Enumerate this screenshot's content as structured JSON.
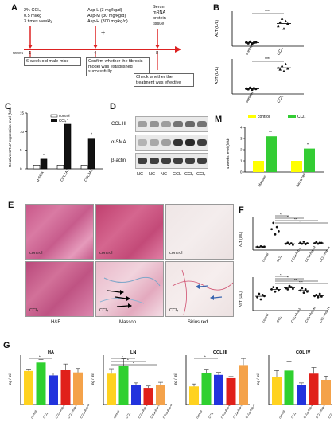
{
  "panelA": {
    "letter": "A",
    "treat": [
      "2% CCl₄",
      "0.5 ml/kg",
      "3 times weekly"
    ],
    "doses": [
      "Asp-L (3 mg/kg/d)",
      "Asp-M (30 mg/kg/d)",
      "Asp-H (300 mg/kg/d)"
    ],
    "plus": "+",
    "samples": [
      "Serum",
      "mRNA",
      "protein",
      "tissue"
    ],
    "week_label": "week",
    "weeks": [
      "1",
      "4",
      "8"
    ],
    "box1": "6-week-old male mice",
    "box2": "Confirm whether the fibrosis model was established successfully",
    "box3": "Check whether the treatment was effective"
  },
  "panelB": {
    "letter": "B",
    "charts": [
      {
        "ylabel": "ALT (U/L)",
        "sig": "***",
        "categories": [
          "control",
          "CCl₄"
        ]
      },
      {
        "ylabel": "AST (U/L)",
        "sig": "***",
        "categories": [
          "control",
          "CCl₄"
        ]
      }
    ]
  },
  "panelC": {
    "letter": "C",
    "ylabel": "Relative mRNA expression level (fold)",
    "legend": [
      "control",
      "CCl₄"
    ],
    "categories": [
      "α-SMA",
      "COL1A1",
      "COL3A1"
    ],
    "sig": [
      "*",
      "*",
      "*"
    ]
  },
  "panelD": {
    "letter": "D",
    "rows": [
      "COL III",
      "α-SMA",
      "β-actin"
    ],
    "lanes": [
      "NC",
      "NC",
      "NC",
      "CCl₄",
      "CCl₄",
      "CCl₄"
    ]
  },
  "panelM": {
    "letter": "M",
    "legend": [
      "control",
      "CCl₄"
    ],
    "ylabel": "4 weeks level (fold)",
    "categories": [
      "Masson",
      "Sirius red"
    ],
    "sig": [
      "**",
      "*"
    ]
  },
  "panelE": {
    "letter": "E",
    "top_labels": [
      "control",
      "control",
      "control"
    ],
    "bottom_labels": [
      "CCl₄",
      "CCl₄",
      "CCl₄"
    ],
    "captions": [
      "H&E",
      "Masson",
      "Sirius red"
    ]
  },
  "panelF": {
    "letter": "F",
    "charts": [
      {
        "ylabel": "ALT (U/L)",
        "sig": [
          "**",
          "**",
          "**",
          "**"
        ]
      },
      {
        "ylabel": "AST (U/L)",
        "sig": [
          "*",
          "*",
          "**",
          "***"
        ]
      }
    ],
    "categories": [
      "control",
      "CCl₄",
      "CCl₄+Asp-L",
      "CCl₄+Asp-M",
      "CCl₄+Asp-H"
    ]
  },
  "panelG": {
    "letter": "G",
    "charts": [
      {
        "title": "HA",
        "ylabel": "ng / ml",
        "sig": [
          "*"
        ]
      },
      {
        "title": "LN",
        "ylabel": "ng / ml",
        "sig": [
          "*",
          "*",
          "*"
        ]
      },
      {
        "title": "COL III",
        "ylabel": "ng / ml",
        "sig": [
          "*"
        ]
      },
      {
        "title": "COL IV",
        "ylabel": "ng / ml",
        "sig": []
      }
    ],
    "categories": [
      "control",
      "CCl₄",
      "CCl₄+Asp-L",
      "CCl₄+Asp-M",
      "CCl₄+Asp-H"
    ]
  },
  "chart_data": [
    {
      "type": "scatter",
      "panel": "B-ALT",
      "categories": [
        "control",
        "CCl₄"
      ],
      "values": [
        [
          15,
          12,
          18,
          10,
          14,
          16
        ],
        [
          80,
          95,
          110,
          70,
          100,
          90
        ]
      ],
      "ylabel": "ALT (U/L)"
    },
    {
      "type": "scatter",
      "panel": "B-AST",
      "categories": [
        "control",
        "CCl₄"
      ],
      "values": [
        [
          60,
          55,
          70,
          50,
          65,
          58
        ],
        [
          300,
          280,
          320,
          260,
          340,
          290
        ]
      ],
      "ylabel": "AST (U/L)"
    },
    {
      "type": "bar",
      "panel": "C",
      "categories": [
        "α-SMA",
        "COL1A1",
        "COL3A1"
      ],
      "series": [
        {
          "name": "control",
          "values": [
            1,
            1,
            1
          ]
        },
        {
          "name": "CCl₄",
          "values": [
            2.6,
            12,
            8.2
          ]
        }
      ],
      "ylim": [
        0,
        15
      ]
    },
    {
      "type": "bar",
      "panel": "M",
      "categories": [
        "Masson",
        "Sirius red"
      ],
      "series": [
        {
          "name": "control",
          "values": [
            1,
            1
          ]
        },
        {
          "name": "CCl₄",
          "values": [
            3.2,
            2.1
          ]
        }
      ],
      "ylim": [
        0,
        4
      ]
    },
    {
      "type": "scatter",
      "panel": "F-ALT",
      "categories": [
        "control",
        "CCl₄",
        "CCl₄+Asp-L",
        "CCl₄+Asp-M",
        "CCl₄+Asp-H"
      ],
      "values": [
        [
          30,
          25,
          35,
          28,
          32
        ],
        [
          200,
          260,
          150,
          220,
          180
        ],
        [
          60,
          70,
          55,
          65,
          50
        ],
        [
          70,
          60,
          80,
          55,
          65
        ],
        [
          65,
          75,
          60,
          70,
          68
        ]
      ]
    },
    {
      "type": "scatter",
      "panel": "F-AST",
      "categories": [
        "control",
        "CCl₄",
        "CCl₄+Asp-L",
        "CCl₄+Asp-M",
        "CCl₄+Asp-H"
      ],
      "values": [
        [
          120,
          150,
          100,
          140,
          130
        ],
        [
          190,
          210,
          170,
          200,
          180
        ],
        [
          200,
          190,
          220,
          210,
          195
        ],
        [
          180,
          200,
          160,
          190,
          170
        ],
        [
          130,
          140,
          120,
          150,
          125
        ]
      ]
    },
    {
      "type": "bar",
      "panel": "G-HA",
      "categories": [
        "control",
        "CCl₄",
        "CCl₄+Asp-L",
        "CCl₄+Asp-M",
        "CCl₄+Asp-H"
      ],
      "values": [
        680,
        850,
        590,
        700,
        650
      ],
      "errors": [
        40,
        60,
        50,
        120,
        80
      ],
      "ylim": [
        0,
        1000
      ]
    },
    {
      "type": "bar",
      "panel": "G-LN",
      "categories": [
        "control",
        "CCl₄",
        "CCl₄+Asp-L",
        "CCl₄+Asp-M",
        "CCl₄+Asp-H"
      ],
      "values": [
        500,
        620,
        320,
        270,
        320
      ],
      "errors": [
        80,
        120,
        30,
        30,
        40
      ],
      "ylim": [
        0,
        800
      ]
    },
    {
      "type": "bar",
      "panel": "G-COLIII",
      "categories": [
        "control",
        "CCl₄",
        "CCl₄+Asp-L",
        "CCl₄+Asp-M",
        "CCl₄+Asp-H"
      ],
      "values": [
        22,
        38,
        36,
        32,
        48
      ],
      "errors": [
        3,
        5,
        3,
        2,
        8
      ],
      "ylim": [
        0,
        60
      ]
    },
    {
      "type": "bar",
      "panel": "G-COLIV",
      "categories": [
        "control",
        "CCl₄",
        "CCl₄+Asp-L",
        "CCl₄+Asp-M",
        "CCl₄+Asp-H"
      ],
      "values": [
        45,
        55,
        32,
        50,
        40
      ],
      "errors": [
        10,
        15,
        3,
        10,
        6
      ],
      "ylim": [
        0,
        80
      ]
    }
  ]
}
